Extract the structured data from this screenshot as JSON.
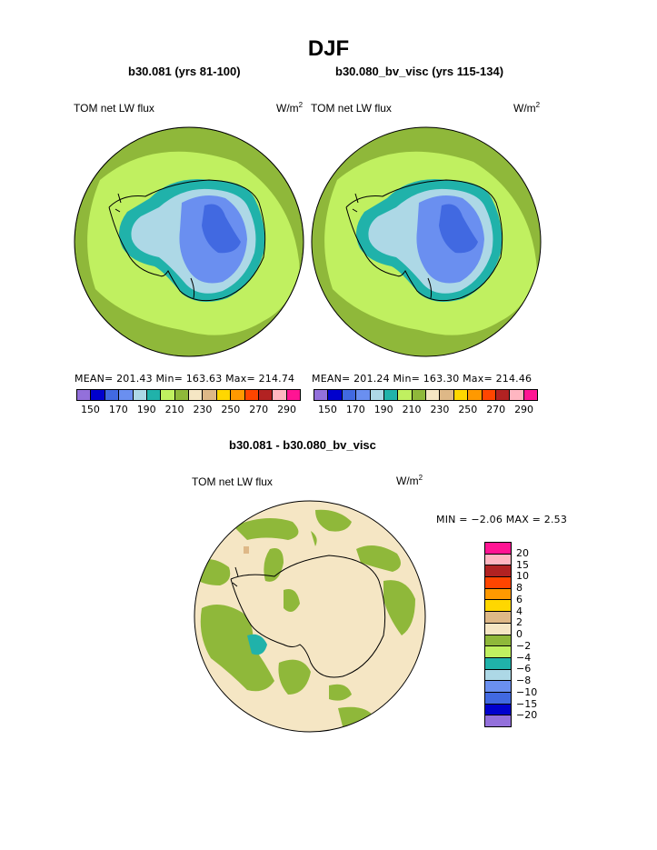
{
  "title": "DJF",
  "panels": [
    {
      "title": "b30.081 (yrs 81-100)",
      "variable": "TOM net LW flux",
      "unit_base": "W/m",
      "unit_exp": "2",
      "stats": "MEAN= 201.43  Min= 163.63  Max= 214.74"
    },
    {
      "title": "b30.080_bv_visc (yrs 115-134)",
      "variable": "TOM net LW flux",
      "unit_base": "W/m",
      "unit_exp": "2",
      "stats": "MEAN= 201.24  Min= 163.30  Max= 214.46"
    }
  ],
  "diff_panel": {
    "title": "b30.081 - b30.080_bv_visc",
    "variable": "TOM net LW flux",
    "unit_base": "W/m",
    "unit_exp": "2",
    "stats": "MIN =  −2.06 MAX =    2.53"
  },
  "colorbar_top": {
    "colors": [
      "#9370db",
      "#0000cd",
      "#4169e1",
      "#6a8ff0",
      "#add8e6",
      "#20b2aa",
      "#c0f060",
      "#8fb83a",
      "#f5e6c4",
      "#deb887",
      "#ffd700",
      "#ff9900",
      "#ff4500",
      "#b22222",
      "#ffb6c1",
      "#ff1493"
    ],
    "labels": [
      "150",
      "170",
      "190",
      "210",
      "230",
      "250",
      "270",
      "290"
    ]
  },
  "colorbar_diff": {
    "colors": [
      "#ff1493",
      "#ffb6c1",
      "#b22222",
      "#ff4500",
      "#ff9900",
      "#ffd700",
      "#deb887",
      "#f5e6c4",
      "#8fb83a",
      "#c0f060",
      "#20b2aa",
      "#add8e6",
      "#6a8ff0",
      "#4169e1",
      "#0000cd",
      "#9370db"
    ],
    "labels": [
      "20",
      "15",
      "10",
      "8",
      "6",
      "4",
      "2",
      "0",
      "−2",
      "−4",
      "−6",
      "−8",
      "−10",
      "−15",
      "−20"
    ]
  }
}
